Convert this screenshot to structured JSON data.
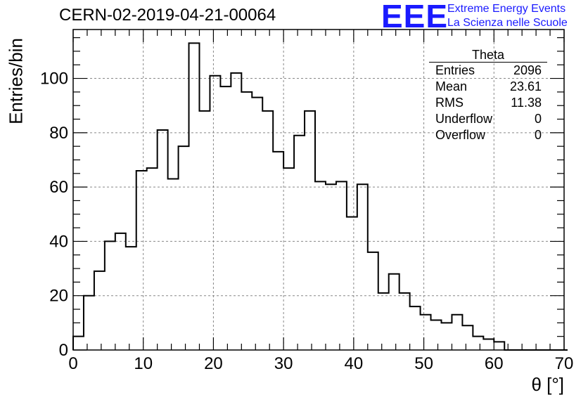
{
  "header": {
    "run_title": "CERN-02-2019-04-21-00064",
    "logo": "EEE",
    "logo_line1": "Extreme Energy Events",
    "logo_line2": "La Scienza nelle Scuole"
  },
  "stats_box": {
    "title": "Theta",
    "rows": [
      {
        "label": "Entries",
        "value": "2096"
      },
      {
        "label": "Mean",
        "value": "23.61"
      },
      {
        "label": "RMS",
        "value": "11.38"
      },
      {
        "label": "Underflow",
        "value": "0"
      },
      {
        "label": "Overflow",
        "value": "0"
      }
    ]
  },
  "colors": {
    "line": "#000000",
    "grid": "#888888",
    "logo": "#1a1aff"
  },
  "chart_data": {
    "type": "bar",
    "histogram": true,
    "xlabel": "θ [°]",
    "ylabel": "Entries/bin",
    "xlim": [
      0,
      70
    ],
    "ylim": [
      0,
      118
    ],
    "grid": true,
    "x_ticks": [
      0,
      10,
      20,
      30,
      40,
      50,
      60,
      70
    ],
    "y_ticks": [
      0,
      20,
      40,
      60,
      80,
      100
    ],
    "bin_width": 1.5,
    "bin_edges_start": 0,
    "values": [
      5,
      20,
      29,
      40,
      43,
      38,
      66,
      67,
      81,
      63,
      75,
      113,
      88,
      101,
      97,
      102,
      95,
      93,
      88,
      73,
      67,
      79,
      88,
      62,
      61,
      62,
      49,
      61,
      36,
      21,
      28,
      21,
      16,
      13,
      11,
      10,
      13,
      9,
      5,
      4,
      3,
      0,
      0,
      0,
      0,
      0,
      0
    ]
  }
}
